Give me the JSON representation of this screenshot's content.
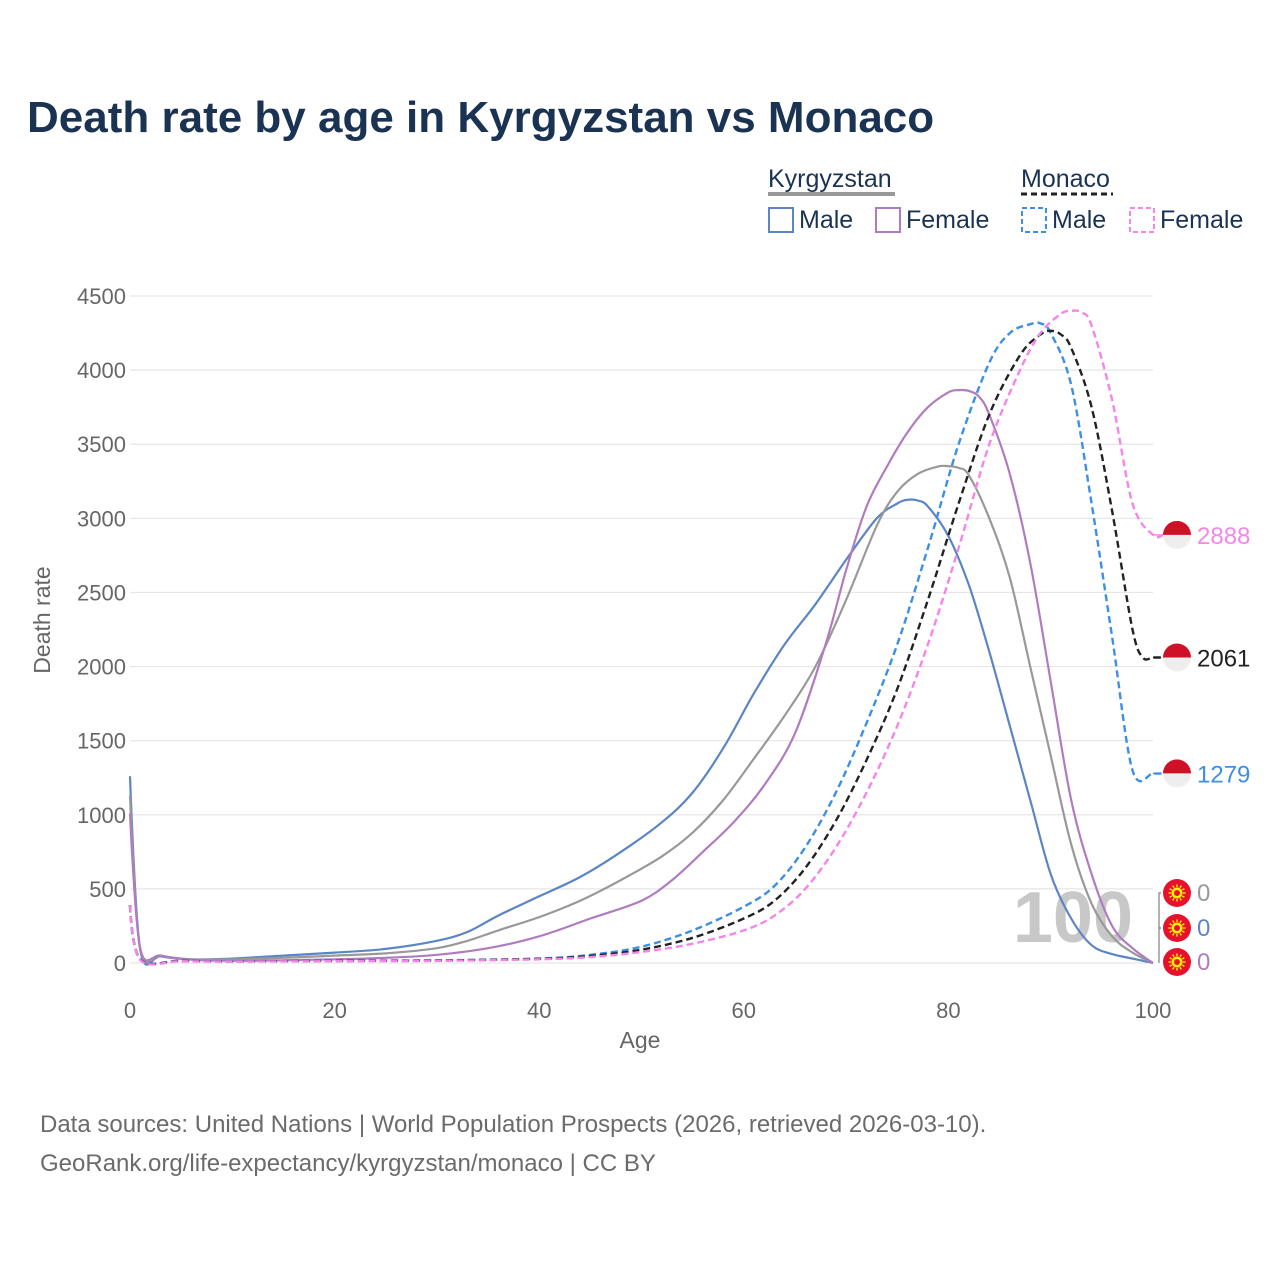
{
  "title": "Death rate by age in Kyrgyzstan vs Monaco",
  "legend": {
    "groups": [
      {
        "name": "Kyrgyzstan",
        "color": "#999999",
        "dashed": false
      },
      {
        "name": "Monaco",
        "color": "#222222",
        "dashed": true
      }
    ],
    "items": [
      {
        "label": "Male",
        "color": "#5b85c4",
        "dashed": false
      },
      {
        "label": "Female",
        "color": "#b07cc0",
        "dashed": false
      },
      {
        "label": "Male",
        "color": "#3d8fe6",
        "dashed": true
      },
      {
        "label": "Female",
        "color": "#f585e8",
        "dashed": true
      }
    ]
  },
  "current_age": "100",
  "footer": {
    "line1": "Data sources: United Nations | World Population Prospects (2026, retrieved 2026-03-10).",
    "line2": "GeoRank.org/life-expectancy/kyrgyzstan/monaco | CC BY"
  },
  "chart_data": {
    "type": "line",
    "xlabel": "Age",
    "ylabel": "Death rate",
    "xlim": [
      0,
      100
    ],
    "ylim": [
      0,
      4500
    ],
    "xticks": [
      0,
      20,
      40,
      60,
      80,
      100
    ],
    "yticks": [
      0,
      500,
      1000,
      1500,
      2000,
      2500,
      3000,
      3500,
      4000,
      4500
    ],
    "grid": true,
    "series": [
      {
        "name": "Kyrgyzstan Male",
        "color": "#5b85c4",
        "dashed": false,
        "end_label": "0",
        "x": [
          0,
          1,
          3,
          6,
          10,
          15,
          20,
          25,
          30,
          33,
          36,
          40,
          44,
          48,
          52,
          55,
          58,
          61,
          64,
          67,
          70,
          73,
          75,
          76,
          77,
          78,
          80,
          82,
          84,
          86,
          88,
          90,
          92,
          94,
          96,
          98,
          100
        ],
        "y": [
          1260,
          90,
          45,
          25,
          30,
          50,
          70,
          95,
          150,
          210,
          320,
          450,
          580,
          750,
          950,
          1150,
          1450,
          1820,
          2150,
          2420,
          2720,
          3000,
          3100,
          3125,
          3120,
          3080,
          2880,
          2550,
          2100,
          1600,
          1100,
          600,
          300,
          120,
          60,
          30,
          0
        ]
      },
      {
        "name": "Kyrgyzstan Both",
        "color": "#999999",
        "dashed": false,
        "end_label": "0",
        "x": [
          0,
          1,
          3,
          6,
          10,
          15,
          20,
          25,
          30,
          33,
          36,
          40,
          44,
          48,
          52,
          55,
          58,
          61,
          64,
          67,
          70,
          73,
          75,
          77,
          79,
          80,
          81,
          82,
          84,
          86,
          88,
          90,
          92,
          94,
          96,
          98,
          100
        ],
        "y": [
          1130,
          95,
          50,
          25,
          25,
          35,
          50,
          65,
          100,
          150,
          220,
          310,
          420,
          560,
          720,
          880,
          1100,
          1380,
          1670,
          2000,
          2450,
          2950,
          3180,
          3300,
          3350,
          3352,
          3340,
          3290,
          3000,
          2600,
          2000,
          1400,
          800,
          400,
          180,
          70,
          0
        ]
      },
      {
        "name": "Kyrgyzstan Female",
        "color": "#b07cc0",
        "dashed": false,
        "end_label": "0",
        "x": [
          0,
          1,
          3,
          6,
          10,
          15,
          20,
          25,
          30,
          35,
          40,
          45,
          50,
          53,
          56,
          59,
          62,
          65,
          68,
          70,
          72,
          74,
          76,
          78,
          80,
          81,
          82,
          83,
          84,
          86,
          88,
          90,
          92,
          94,
          96,
          98,
          100
        ],
        "y": [
          1010,
          100,
          50,
          22,
          15,
          18,
          25,
          35,
          55,
          100,
          180,
          300,
          420,
          560,
          750,
          950,
          1200,
          1550,
          2150,
          2650,
          3080,
          3350,
          3580,
          3750,
          3850,
          3865,
          3860,
          3820,
          3700,
          3300,
          2700,
          1900,
          1100,
          600,
          250,
          100,
          0
        ]
      },
      {
        "name": "Monaco Male",
        "color": "#3d8fe6",
        "dashed": true,
        "end_label": "1279",
        "x": [
          0,
          1,
          5,
          10,
          20,
          30,
          40,
          45,
          50,
          55,
          60,
          63,
          66,
          69,
          72,
          75,
          78,
          81,
          84,
          86,
          88,
          89,
          90,
          92,
          94,
          96,
          98,
          100,
          101
        ],
        "y": [
          390,
          25,
          15,
          12,
          15,
          18,
          30,
          55,
          110,
          220,
          380,
          520,
          780,
          1150,
          1620,
          2150,
          2800,
          3500,
          4050,
          4250,
          4310,
          4315,
          4250,
          3900,
          3100,
          2200,
          1300,
          1279,
          1279
        ]
      },
      {
        "name": "Monaco Both",
        "color": "#222222",
        "dashed": true,
        "end_label": "2061",
        "x": [
          0,
          1,
          5,
          10,
          20,
          30,
          40,
          45,
          50,
          55,
          60,
          63,
          66,
          69,
          72,
          75,
          78,
          81,
          84,
          87,
          89,
          90,
          91,
          92,
          94,
          96,
          98,
          99,
          100,
          101
        ],
        "y": [
          390,
          22,
          14,
          11,
          14,
          17,
          28,
          48,
          90,
          170,
          300,
          420,
          640,
          960,
          1370,
          1850,
          2450,
          3100,
          3700,
          4100,
          4240,
          4265,
          4240,
          4150,
          3750,
          3050,
          2250,
          2061,
          2061,
          2061
        ]
      },
      {
        "name": "Monaco Female",
        "color": "#f585e8",
        "dashed": true,
        "end_label": "2888",
        "x": [
          0,
          1,
          5,
          10,
          20,
          30,
          40,
          45,
          50,
          55,
          60,
          63,
          66,
          69,
          72,
          75,
          78,
          81,
          84,
          87,
          89,
          91,
          92,
          93,
          94,
          96,
          98,
          100,
          101
        ],
        "y": [
          390,
          20,
          12,
          10,
          12,
          15,
          25,
          40,
          75,
          130,
          220,
          320,
          500,
          780,
          1150,
          1600,
          2150,
          2800,
          3500,
          4000,
          4250,
          4380,
          4400,
          4390,
          4300,
          3800,
          3100,
          2888,
          2888
        ]
      }
    ]
  }
}
